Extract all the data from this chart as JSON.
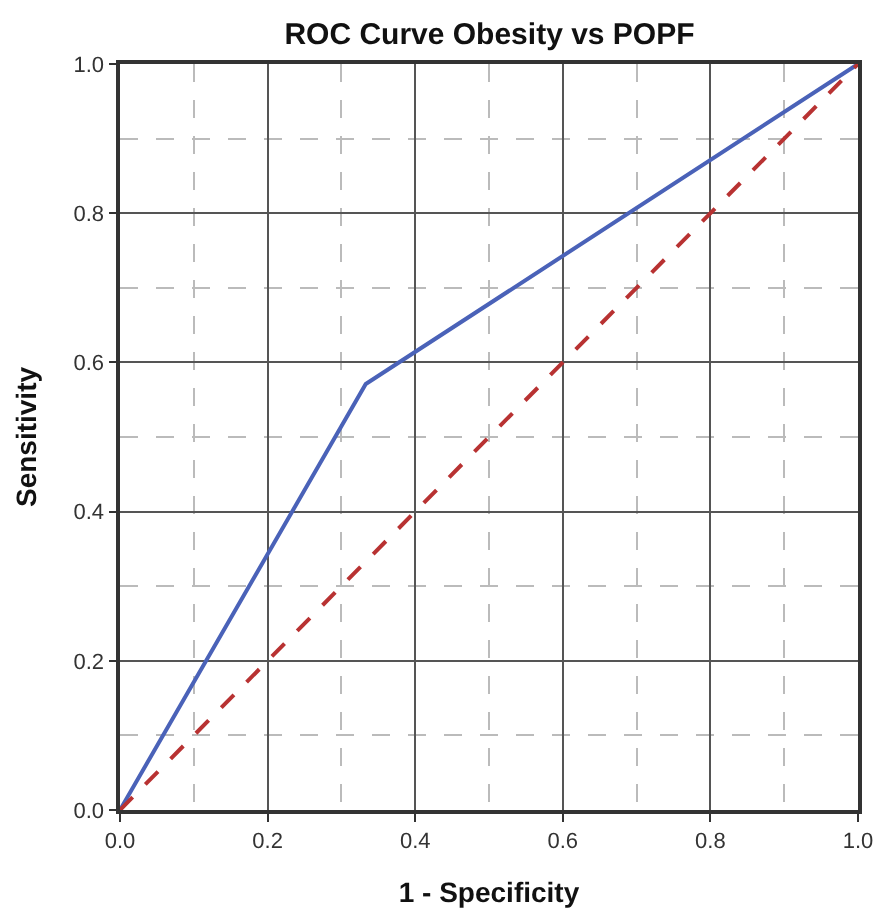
{
  "chart_data": {
    "type": "line",
    "title": "ROC Curve Obesity vs POPF",
    "xlabel": "1 - Specificity",
    "ylabel": "Sensitivity",
    "xlim": [
      0,
      1
    ],
    "ylim": [
      0,
      1
    ],
    "xticks": [
      {
        "value": 0,
        "label": "0.0"
      },
      {
        "value": 0.2,
        "label": "0.2"
      },
      {
        "value": 0.4,
        "label": "0.4"
      },
      {
        "value": 0.6,
        "label": "0.6"
      },
      {
        "value": 0.8,
        "label": "0.8"
      },
      {
        "value": 1,
        "label": "1.0"
      }
    ],
    "yticks": [
      {
        "value": 0,
        "label": "0.0"
      },
      {
        "value": 0.2,
        "label": "0.2"
      },
      {
        "value": 0.4,
        "label": "0.4"
      },
      {
        "value": 0.6,
        "label": "0.6"
      },
      {
        "value": 0.8,
        "label": "0.8"
      },
      {
        "value": 1,
        "label": "1.0"
      }
    ],
    "grid": true,
    "series": [
      {
        "x": [
          0,
          0.333,
          1
        ],
        "values": [
          0,
          0.571,
          1
        ],
        "color": "#4a62b8",
        "line_style": "solid"
      },
      {
        "x": [
          0,
          1
        ],
        "values": [
          0,
          1
        ],
        "color": "#b83232",
        "line_style": "dashed"
      }
    ]
  }
}
